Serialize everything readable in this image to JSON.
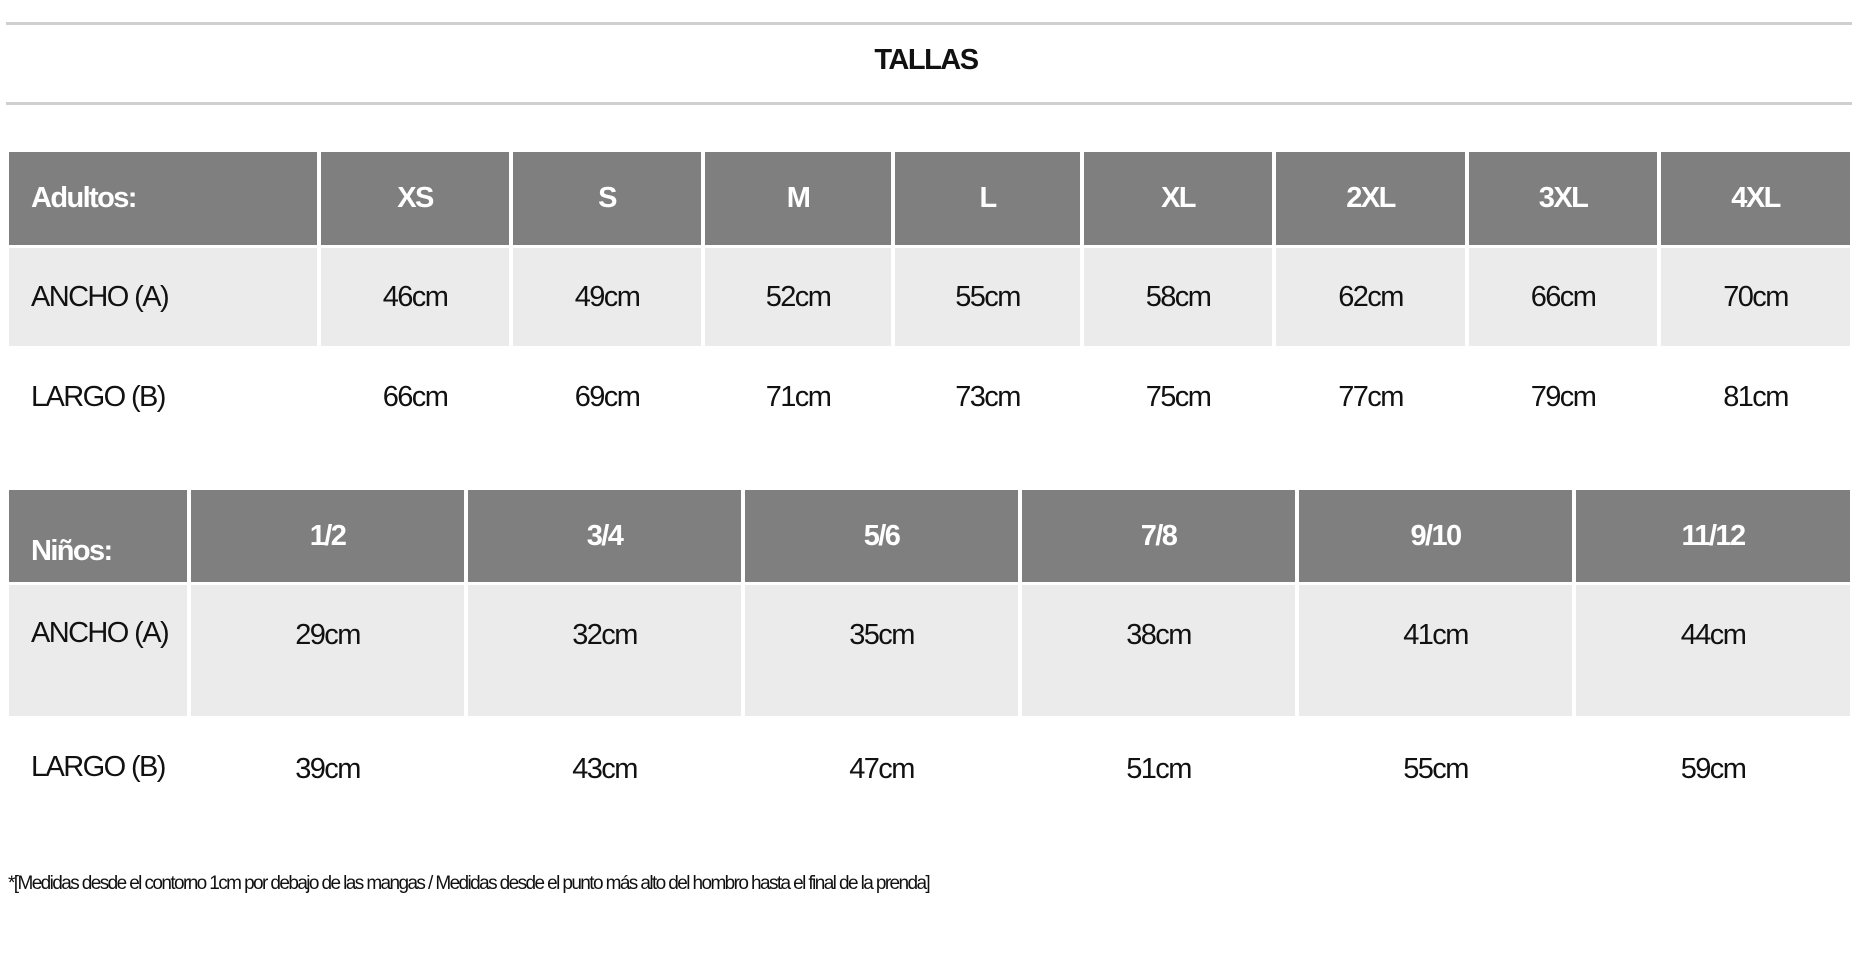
{
  "title": "TALLAS",
  "adults": {
    "label": "Adultos:",
    "sizes": [
      "XS",
      "S",
      "M",
      "L",
      "XL",
      "2XL",
      "3XL",
      "4XL"
    ],
    "rows": [
      {
        "label": "ANCHO (A)",
        "values": [
          "46cm",
          "49cm",
          "52cm",
          "55cm",
          "58cm",
          "62cm",
          "66cm",
          "70cm"
        ]
      },
      {
        "label": "LARGO (B)",
        "values": [
          "66cm",
          "69cm",
          "71cm",
          "73cm",
          "75cm",
          "77cm",
          "79cm",
          "81cm"
        ]
      }
    ]
  },
  "kids": {
    "label": "Niños:",
    "sizes": [
      "1/2",
      "3/4",
      "5/6",
      "7/8",
      "9/10",
      "11/12"
    ],
    "rows": [
      {
        "label": "ANCHO (A)",
        "values": [
          "29cm",
          "32cm",
          "35cm",
          "38cm",
          "41cm",
          "44cm"
        ]
      },
      {
        "label": "LARGO (B)",
        "values": [
          "39cm",
          "43cm",
          "47cm",
          "51cm",
          "55cm",
          "59cm"
        ]
      }
    ]
  },
  "footnote": "*[Medidas desde el contorno 1cm por debajo de las mangas / Medidas desde el punto más alto del hombro hasta el final de la prenda]",
  "colors": {
    "header_bg": "#7f7f7f",
    "row_alt_bg": "#ebebeb"
  }
}
